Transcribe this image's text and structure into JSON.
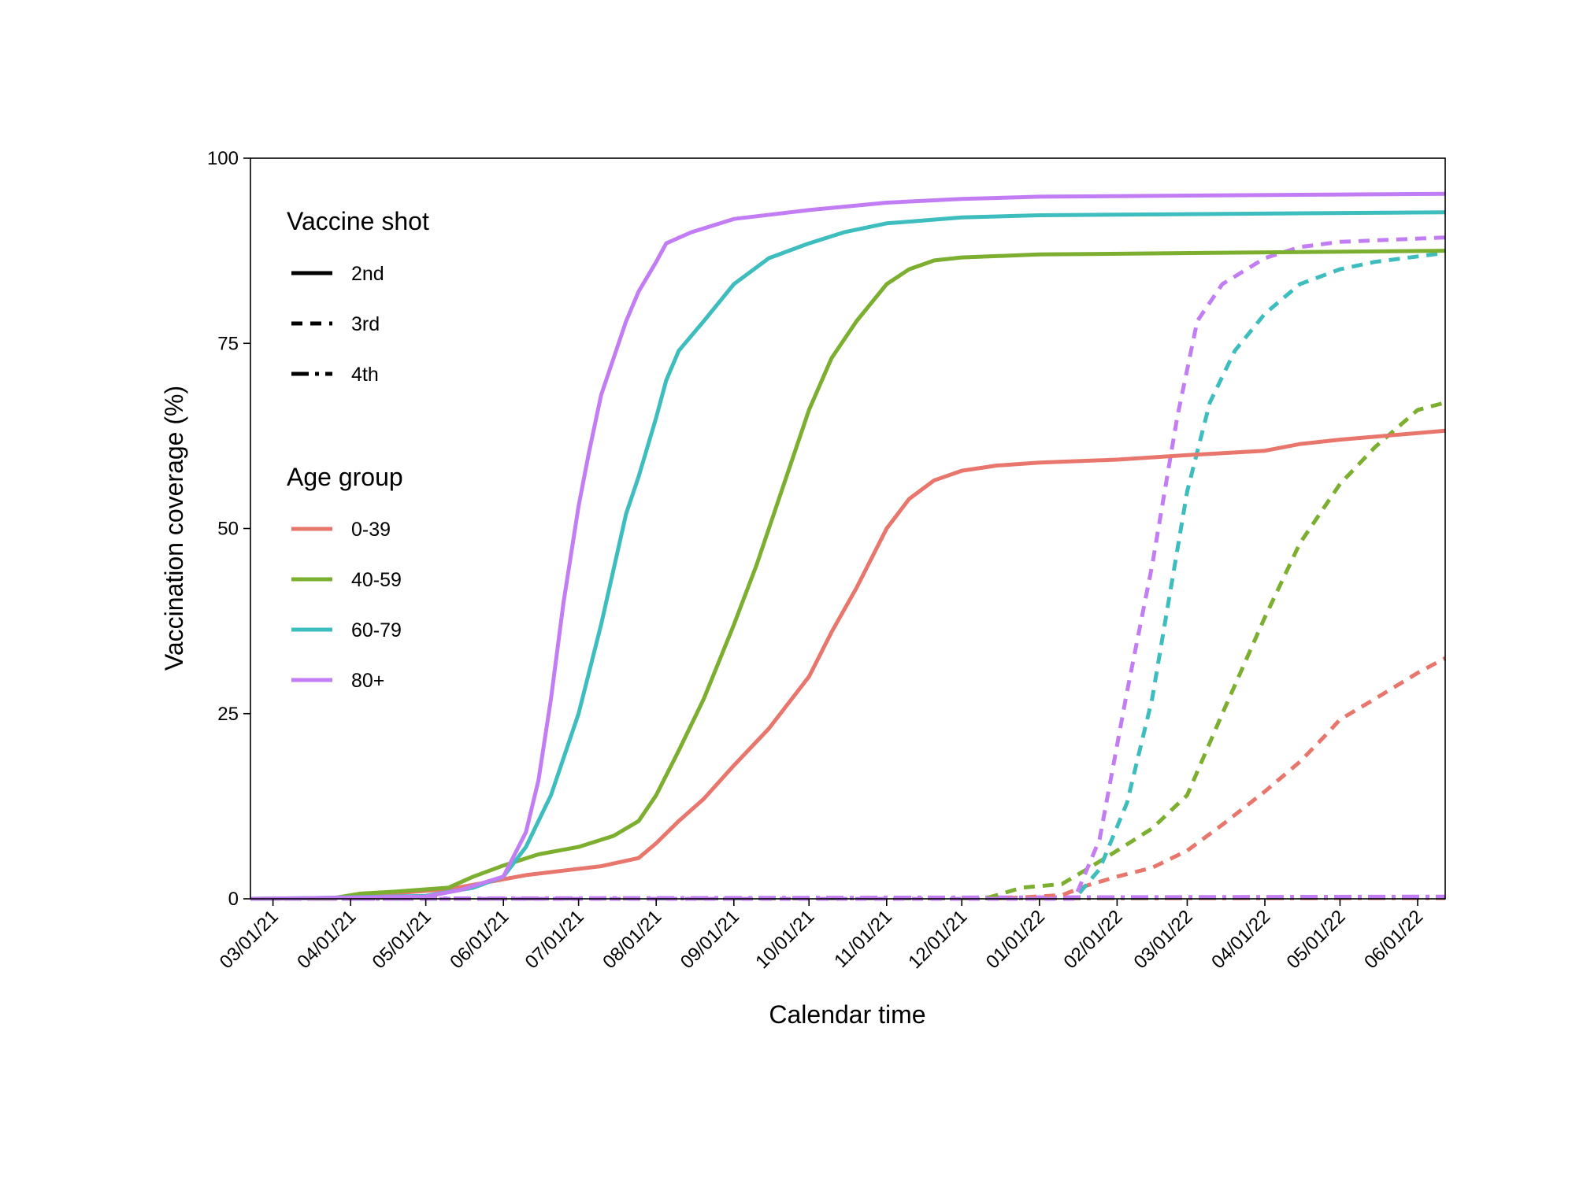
{
  "chart_data": {
    "type": "line",
    "title": "",
    "xlabel": "Calendar time",
    "ylabel": "Vaccination coverage (%)",
    "x_range": [
      "2021-02-20",
      "2022-06-12"
    ],
    "ylim": [
      0,
      100
    ],
    "y_ticks": [
      0,
      25,
      50,
      75,
      100
    ],
    "x_ticks": [
      {
        "date": "2021-03-01",
        "label": "03/01/21"
      },
      {
        "date": "2021-04-01",
        "label": "04/01/21"
      },
      {
        "date": "2021-05-01",
        "label": "05/01/21"
      },
      {
        "date": "2021-06-01",
        "label": "06/01/21"
      },
      {
        "date": "2021-07-01",
        "label": "07/01/21"
      },
      {
        "date": "2021-08-01",
        "label": "08/01/21"
      },
      {
        "date": "2021-09-01",
        "label": "09/01/21"
      },
      {
        "date": "2021-10-01",
        "label": "10/01/21"
      },
      {
        "date": "2021-11-01",
        "label": "11/01/21"
      },
      {
        "date": "2021-12-01",
        "label": "12/01/21"
      },
      {
        "date": "2022-01-01",
        "label": "01/01/22"
      },
      {
        "date": "2022-02-01",
        "label": "02/01/22"
      },
      {
        "date": "2022-03-01",
        "label": "03/01/22"
      },
      {
        "date": "2022-04-01",
        "label": "04/01/22"
      },
      {
        "date": "2022-05-01",
        "label": "05/01/22"
      },
      {
        "date": "2022-06-01",
        "label": "06/01/22"
      }
    ],
    "grid": false,
    "legend": {
      "placement": "top-left inside",
      "shot_title": "Vaccine shot",
      "shots": [
        {
          "label": "2nd",
          "dash": "solid"
        },
        {
          "label": "3rd",
          "dash": "dashed"
        },
        {
          "label": "4th",
          "dash": "dashdot"
        }
      ],
      "age_title": "Age group",
      "ages": [
        {
          "label": "0-39",
          "color": "#E8766D"
        },
        {
          "label": "40-59",
          "color": "#7CAE2F"
        },
        {
          "label": "60-79",
          "color": "#3EBDBE"
        },
        {
          "label": "80+",
          "color": "#C27DF5"
        }
      ]
    },
    "series": [
      {
        "age": "0-39",
        "shot": "2nd",
        "points": [
          [
            "2021-02-20",
            0
          ],
          [
            "2021-03-25",
            0.1
          ],
          [
            "2021-04-05",
            0.4
          ],
          [
            "2021-04-20",
            0.8
          ],
          [
            "2021-05-10",
            1.3
          ],
          [
            "2021-05-25",
            2.2
          ],
          [
            "2021-06-10",
            3.2
          ],
          [
            "2021-06-25",
            3.8
          ],
          [
            "2021-07-10",
            4.4
          ],
          [
            "2021-07-25",
            5.5
          ],
          [
            "2021-08-01",
            7.5
          ],
          [
            "2021-08-10",
            10.5
          ],
          [
            "2021-08-20",
            13.5
          ],
          [
            "2021-09-01",
            18
          ],
          [
            "2021-09-15",
            23
          ],
          [
            "2021-10-01",
            30
          ],
          [
            "2021-10-10",
            36
          ],
          [
            "2021-10-20",
            42
          ],
          [
            "2021-11-01",
            50
          ],
          [
            "2021-11-10",
            54
          ],
          [
            "2021-11-20",
            56.5
          ],
          [
            "2021-12-01",
            57.8
          ],
          [
            "2021-12-15",
            58.5
          ],
          [
            "2022-01-01",
            58.9
          ],
          [
            "2022-02-01",
            59.3
          ],
          [
            "2022-03-01",
            59.9
          ],
          [
            "2022-04-01",
            60.5
          ],
          [
            "2022-04-15",
            61.4
          ],
          [
            "2022-05-01",
            62
          ],
          [
            "2022-06-12",
            63.2
          ]
        ]
      },
      {
        "age": "40-59",
        "shot": "2nd",
        "points": [
          [
            "2021-02-20",
            0
          ],
          [
            "2021-03-25",
            0.1
          ],
          [
            "2021-04-05",
            0.7
          ],
          [
            "2021-04-20",
            1.0
          ],
          [
            "2021-05-10",
            1.5
          ],
          [
            "2021-05-20",
            3.0
          ],
          [
            "2021-06-01",
            4.5
          ],
          [
            "2021-06-15",
            6.0
          ],
          [
            "2021-07-01",
            7.0
          ],
          [
            "2021-07-15",
            8.5
          ],
          [
            "2021-07-25",
            10.5
          ],
          [
            "2021-08-01",
            14
          ],
          [
            "2021-08-10",
            20
          ],
          [
            "2021-08-20",
            27
          ],
          [
            "2021-09-01",
            37
          ],
          [
            "2021-09-10",
            45
          ],
          [
            "2021-09-20",
            55
          ],
          [
            "2021-10-01",
            66
          ],
          [
            "2021-10-10",
            73
          ],
          [
            "2021-10-20",
            78
          ],
          [
            "2021-11-01",
            83
          ],
          [
            "2021-11-10",
            85
          ],
          [
            "2021-11-20",
            86.2
          ],
          [
            "2021-12-01",
            86.6
          ],
          [
            "2022-01-01",
            87
          ],
          [
            "2022-06-12",
            87.5
          ]
        ]
      },
      {
        "age": "60-79",
        "shot": "2nd",
        "points": [
          [
            "2021-02-20",
            0
          ],
          [
            "2021-03-15",
            0.1
          ],
          [
            "2021-05-01",
            0.4
          ],
          [
            "2021-05-20",
            1.5
          ],
          [
            "2021-06-01",
            3.0
          ],
          [
            "2021-06-10",
            7
          ],
          [
            "2021-06-20",
            14
          ],
          [
            "2021-07-01",
            25
          ],
          [
            "2021-07-10",
            37
          ],
          [
            "2021-07-20",
            52
          ],
          [
            "2021-07-25",
            57
          ],
          [
            "2021-08-01",
            65
          ],
          [
            "2021-08-05",
            70
          ],
          [
            "2021-08-10",
            74
          ],
          [
            "2021-08-20",
            78
          ],
          [
            "2021-09-01",
            83
          ],
          [
            "2021-09-15",
            86.5
          ],
          [
            "2021-10-01",
            88.5
          ],
          [
            "2021-10-15",
            90
          ],
          [
            "2021-11-01",
            91.2
          ],
          [
            "2021-12-01",
            92
          ],
          [
            "2022-01-01",
            92.3
          ],
          [
            "2022-06-12",
            92.7
          ]
        ]
      },
      {
        "age": "80+",
        "shot": "2nd",
        "points": [
          [
            "2021-02-20",
            0
          ],
          [
            "2021-03-15",
            0.1
          ],
          [
            "2021-05-01",
            0.3
          ],
          [
            "2021-05-15",
            1.2
          ],
          [
            "2021-06-01",
            3.0
          ],
          [
            "2021-06-10",
            9
          ],
          [
            "2021-06-15",
            16
          ],
          [
            "2021-06-20",
            27
          ],
          [
            "2021-06-25",
            40
          ],
          [
            "2021-07-01",
            53
          ],
          [
            "2021-07-05",
            60
          ],
          [
            "2021-07-10",
            68
          ],
          [
            "2021-07-20",
            78
          ],
          [
            "2021-07-25",
            82
          ],
          [
            "2021-08-01",
            86
          ],
          [
            "2021-08-05",
            88.5
          ],
          [
            "2021-08-15",
            90
          ],
          [
            "2021-09-01",
            91.8
          ],
          [
            "2021-10-01",
            93
          ],
          [
            "2021-11-01",
            94
          ],
          [
            "2021-12-01",
            94.5
          ],
          [
            "2022-01-01",
            94.8
          ],
          [
            "2022-06-12",
            95.2
          ]
        ]
      },
      {
        "age": "0-39",
        "shot": "3rd",
        "points": [
          [
            "2021-02-20",
            0
          ],
          [
            "2021-12-15",
            0
          ],
          [
            "2022-01-10",
            0.5
          ],
          [
            "2022-01-20",
            1.8
          ],
          [
            "2022-02-01",
            3.0
          ],
          [
            "2022-02-15",
            4.2
          ],
          [
            "2022-03-01",
            6.5
          ],
          [
            "2022-03-15",
            10
          ],
          [
            "2022-04-01",
            14.5
          ],
          [
            "2022-04-15",
            18.5
          ],
          [
            "2022-04-25",
            22
          ],
          [
            "2022-05-01",
            24.2
          ],
          [
            "2022-05-15",
            27
          ],
          [
            "2022-06-01",
            30.5
          ],
          [
            "2022-06-12",
            32.5
          ]
        ]
      },
      {
        "age": "40-59",
        "shot": "3rd",
        "points": [
          [
            "2021-02-20",
            0
          ],
          [
            "2021-12-10",
            0
          ],
          [
            "2021-12-25",
            1.5
          ],
          [
            "2022-01-10",
            2.0
          ],
          [
            "2022-01-20",
            4.0
          ],
          [
            "2022-02-01",
            6.5
          ],
          [
            "2022-02-15",
            9.5
          ],
          [
            "2022-03-01",
            14
          ],
          [
            "2022-03-15",
            25
          ],
          [
            "2022-04-01",
            38
          ],
          [
            "2022-04-15",
            48
          ],
          [
            "2022-05-01",
            56
          ],
          [
            "2022-05-15",
            61
          ],
          [
            "2022-06-01",
            66
          ],
          [
            "2022-06-12",
            67
          ]
        ]
      },
      {
        "age": "60-79",
        "shot": "3rd",
        "points": [
          [
            "2021-02-20",
            0
          ],
          [
            "2022-01-15",
            0
          ],
          [
            "2022-01-25",
            4
          ],
          [
            "2022-02-05",
            13
          ],
          [
            "2022-02-15",
            27
          ],
          [
            "2022-03-01",
            55
          ],
          [
            "2022-03-10",
            67
          ],
          [
            "2022-03-20",
            74
          ],
          [
            "2022-04-01",
            79
          ],
          [
            "2022-04-15",
            83
          ],
          [
            "2022-05-01",
            85
          ],
          [
            "2022-05-15",
            86
          ],
          [
            "2022-06-12",
            87.2
          ]
        ]
      },
      {
        "age": "80+",
        "shot": "3rd",
        "points": [
          [
            "2021-02-20",
            0
          ],
          [
            "2022-01-15",
            0
          ],
          [
            "2022-01-25",
            8
          ],
          [
            "2022-02-05",
            28
          ],
          [
            "2022-02-15",
            45
          ],
          [
            "2022-02-25",
            65
          ],
          [
            "2022-03-05",
            78
          ],
          [
            "2022-03-15",
            83
          ],
          [
            "2022-04-01",
            86.5
          ],
          [
            "2022-04-15",
            88
          ],
          [
            "2022-05-01",
            88.7
          ],
          [
            "2022-06-12",
            89.3
          ]
        ]
      },
      {
        "age": "0-39",
        "shot": "4th",
        "points": [
          [
            "2021-02-20",
            0
          ],
          [
            "2022-06-12",
            0.1
          ]
        ]
      },
      {
        "age": "40-59",
        "shot": "4th",
        "points": [
          [
            "2021-02-20",
            0
          ],
          [
            "2022-06-12",
            0.2
          ]
        ]
      },
      {
        "age": "60-79",
        "shot": "4th",
        "points": [
          [
            "2021-02-20",
            0
          ],
          [
            "2022-06-12",
            0.2
          ]
        ]
      },
      {
        "age": "80+",
        "shot": "4th",
        "points": [
          [
            "2021-02-20",
            0
          ],
          [
            "2022-06-12",
            0.3
          ]
        ]
      }
    ]
  }
}
